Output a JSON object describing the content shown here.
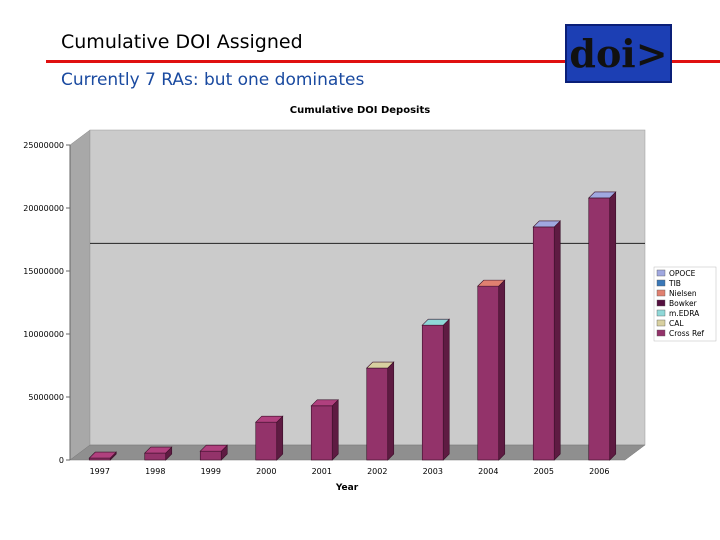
{
  "slide": {
    "title": "Cumulative DOI Assigned",
    "subtitle": "Currently 7 RAs: but one dominates"
  },
  "logo": {
    "text": "doi>"
  },
  "colors": {
    "title_rule": "#e01010",
    "subtitle": "#1a4aa0",
    "logo_bg": "#1c3fb4",
    "bar_front": "#93336a",
    "bar_top": "#b0407e",
    "bar_side": "#5e1b42",
    "plot_back": "#cbcbcb",
    "plot_side": "#a8a8a8",
    "plot_floor": "#8f8f8f"
  },
  "chart_data": {
    "type": "bar",
    "title": "Cumulative DOI Deposits",
    "xlabel": "Year",
    "ylabel": "",
    "categories": [
      "1997",
      "1998",
      "1999",
      "2000",
      "2001",
      "2002",
      "2003",
      "2004",
      "2005",
      "2006"
    ],
    "ylim": [
      0,
      25000000
    ],
    "yticks": [
      "25000000",
      "20000000",
      "15000000",
      "10000000",
      "5000000",
      "0"
    ],
    "ytick_values": [
      25000000,
      20000000,
      15000000,
      10000000,
      5000000,
      0
    ],
    "series": [
      {
        "name": "Cross Ref",
        "color": "#93336a",
        "values": [
          150000,
          550000,
          700000,
          3000000,
          4300000,
          7300000,
          10700000,
          13800000,
          18500000,
          20800000
        ]
      }
    ],
    "stack_caps": [
      {
        "name": "m.EDRA",
        "color": "#8fd8d8",
        "values": [
          0,
          0,
          0,
          0,
          0,
          50000,
          120000,
          0,
          0,
          0
        ]
      },
      {
        "name": "CAL",
        "color": "#d8d0a0",
        "values": [
          0,
          0,
          0,
          0,
          0,
          80000,
          0,
          0,
          0,
          0
        ]
      },
      {
        "name": "Nielsen",
        "color": "#e08070",
        "values": [
          0,
          0,
          0,
          0,
          0,
          0,
          0,
          120000,
          0,
          0
        ]
      },
      {
        "name": "OPOCE",
        "color": "#a0a8e0",
        "values": [
          0,
          0,
          0,
          0,
          0,
          0,
          0,
          0,
          150000,
          200000
        ]
      }
    ],
    "reference_line": 16000000,
    "legend": {
      "position": "right",
      "entries": [
        {
          "label": "OPOCE",
          "color": "#a0a8e0"
        },
        {
          "label": "TIB",
          "color": "#3a78b8"
        },
        {
          "label": "Nielsen",
          "color": "#e08070"
        },
        {
          "label": "Bowker",
          "color": "#551040"
        },
        {
          "label": "m.EDRA",
          "color": "#8fd8d8"
        },
        {
          "label": "CAL",
          "color": "#d8d0a0"
        },
        {
          "label": "Cross Ref",
          "color": "#93336a"
        }
      ]
    },
    "grid": false
  }
}
